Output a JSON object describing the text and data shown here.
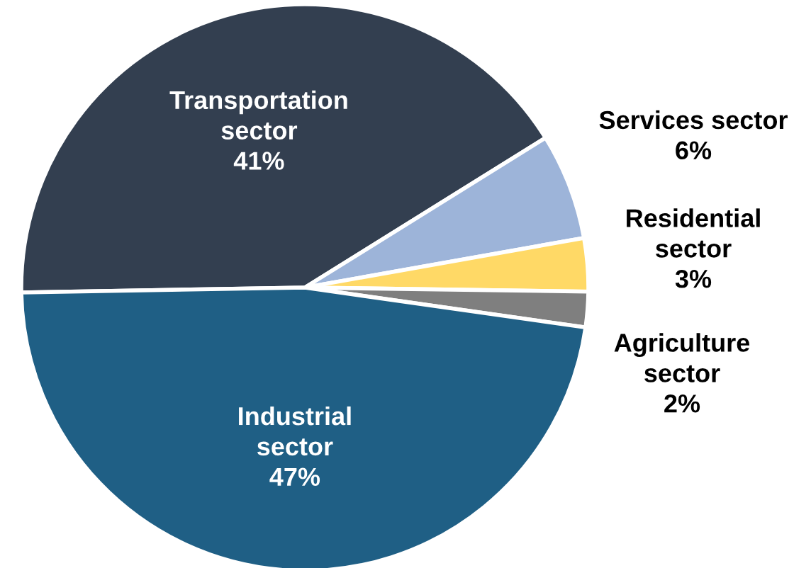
{
  "chart_data": {
    "type": "pie",
    "categories": [
      "Transportation sector",
      "Services sector",
      "Residential sector",
      "Agriculture sector",
      "Industrial sector"
    ],
    "values": [
      41,
      6,
      3,
      2,
      47
    ],
    "value_labels": [
      "41%",
      "6%",
      "3%",
      "2%",
      "47%"
    ],
    "colors": [
      "#333f50",
      "#9db4d9",
      "#ffd966",
      "#7f7f7f",
      "#1f5f85"
    ],
    "legend": false
  }
}
